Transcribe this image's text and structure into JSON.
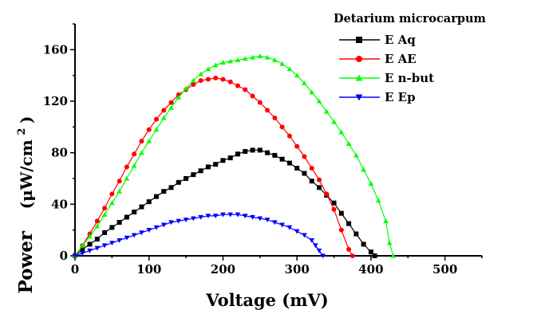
{
  "chart_data": {
    "type": "line",
    "xlabel": "Voltage (mV)",
    "ylabel_main": "Power",
    "ylabel_unit_open": "(μW/cm",
    "ylabel_unit_sup": "2",
    "ylabel_unit_close": ")",
    "xlim": [
      0,
      550
    ],
    "ylim": [
      0,
      180
    ],
    "xticks": [
      0,
      100,
      200,
      300,
      400,
      500
    ],
    "yticks": [
      0,
      40,
      80,
      120,
      160
    ],
    "grid": false,
    "legend": {
      "title": "Detarium microcarpum",
      "placement": "top-right"
    },
    "series": [
      {
        "name": "E Aq",
        "color": "#000000",
        "marker": "square",
        "points": [
          [
            0,
            0
          ],
          [
            10,
            5
          ],
          [
            20,
            9
          ],
          [
            30,
            13
          ],
          [
            40,
            18
          ],
          [
            50,
            22
          ],
          [
            60,
            26
          ],
          [
            70,
            30
          ],
          [
            80,
            34
          ],
          [
            90,
            38
          ],
          [
            100,
            42
          ],
          [
            110,
            46
          ],
          [
            120,
            50
          ],
          [
            130,
            53
          ],
          [
            140,
            57
          ],
          [
            150,
            60
          ],
          [
            160,
            63
          ],
          [
            170,
            66
          ],
          [
            180,
            69
          ],
          [
            190,
            71
          ],
          [
            200,
            74
          ],
          [
            210,
            76
          ],
          [
            220,
            79
          ],
          [
            230,
            81
          ],
          [
            240,
            82
          ],
          [
            250,
            82
          ],
          [
            260,
            80
          ],
          [
            270,
            78
          ],
          [
            280,
            75
          ],
          [
            290,
            72
          ],
          [
            300,
            68
          ],
          [
            310,
            64
          ],
          [
            320,
            58
          ],
          [
            330,
            53
          ],
          [
            340,
            47
          ],
          [
            350,
            41
          ],
          [
            360,
            33
          ],
          [
            370,
            25
          ],
          [
            380,
            17
          ],
          [
            390,
            9
          ],
          [
            400,
            3
          ],
          [
            405,
            0
          ]
        ]
      },
      {
        "name": "E AE",
        "color": "#ff0000",
        "marker": "circle",
        "points": [
          [
            0,
            0
          ],
          [
            10,
            8
          ],
          [
            20,
            17
          ],
          [
            30,
            27
          ],
          [
            40,
            37
          ],
          [
            50,
            48
          ],
          [
            60,
            58
          ],
          [
            70,
            69
          ],
          [
            80,
            79
          ],
          [
            90,
            89
          ],
          [
            100,
            98
          ],
          [
            110,
            106
          ],
          [
            120,
            113
          ],
          [
            130,
            119
          ],
          [
            140,
            125
          ],
          [
            150,
            129
          ],
          [
            160,
            133
          ],
          [
            170,
            136
          ],
          [
            180,
            137
          ],
          [
            190,
            138
          ],
          [
            200,
            137
          ],
          [
            210,
            135
          ],
          [
            220,
            132
          ],
          [
            230,
            129
          ],
          [
            240,
            124
          ],
          [
            250,
            119
          ],
          [
            260,
            113
          ],
          [
            270,
            107
          ],
          [
            280,
            100
          ],
          [
            290,
            93
          ],
          [
            300,
            85
          ],
          [
            310,
            77
          ],
          [
            320,
            68
          ],
          [
            330,
            59
          ],
          [
            340,
            48
          ],
          [
            350,
            36
          ],
          [
            360,
            20
          ],
          [
            370,
            5
          ],
          [
            375,
            0
          ]
        ]
      },
      {
        "name": "E n-but",
        "color": "#00ff00",
        "marker": "triangle-up",
        "points": [
          [
            0,
            0
          ],
          [
            10,
            8
          ],
          [
            20,
            15
          ],
          [
            30,
            23
          ],
          [
            40,
            32
          ],
          [
            50,
            41
          ],
          [
            60,
            50
          ],
          [
            70,
            60
          ],
          [
            80,
            70
          ],
          [
            90,
            80
          ],
          [
            100,
            89
          ],
          [
            110,
            98
          ],
          [
            120,
            107
          ],
          [
            130,
            115
          ],
          [
            140,
            123
          ],
          [
            150,
            130
          ],
          [
            160,
            136
          ],
          [
            170,
            141
          ],
          [
            180,
            145
          ],
          [
            190,
            148
          ],
          [
            200,
            150
          ],
          [
            210,
            151
          ],
          [
            220,
            152
          ],
          [
            230,
            153
          ],
          [
            240,
            154
          ],
          [
            250,
            155
          ],
          [
            260,
            154
          ],
          [
            270,
            152
          ],
          [
            280,
            149
          ],
          [
            290,
            145
          ],
          [
            300,
            140
          ],
          [
            310,
            134
          ],
          [
            320,
            127
          ],
          [
            330,
            120
          ],
          [
            340,
            112
          ],
          [
            350,
            104
          ],
          [
            360,
            96
          ],
          [
            370,
            87
          ],
          [
            380,
            78
          ],
          [
            390,
            67
          ],
          [
            400,
            56
          ],
          [
            410,
            43
          ],
          [
            420,
            27
          ],
          [
            425,
            10
          ],
          [
            430,
            0
          ]
        ]
      },
      {
        "name": "E Ep",
        "color": "#0000ff",
        "marker": "triangle-down",
        "points": [
          [
            0,
            0
          ],
          [
            10,
            2
          ],
          [
            20,
            4
          ],
          [
            30,
            6
          ],
          [
            40,
            8
          ],
          [
            50,
            10
          ],
          [
            60,
            12
          ],
          [
            70,
            14
          ],
          [
            80,
            16
          ],
          [
            90,
            18
          ],
          [
            100,
            20
          ],
          [
            110,
            22
          ],
          [
            120,
            24
          ],
          [
            130,
            26
          ],
          [
            140,
            27
          ],
          [
            150,
            28
          ],
          [
            160,
            29
          ],
          [
            170,
            30
          ],
          [
            180,
            31
          ],
          [
            190,
            31
          ],
          [
            200,
            32
          ],
          [
            210,
            32
          ],
          [
            220,
            32
          ],
          [
            230,
            31
          ],
          [
            240,
            30
          ],
          [
            250,
            29
          ],
          [
            260,
            28
          ],
          [
            270,
            26
          ],
          [
            280,
            24
          ],
          [
            290,
            22
          ],
          [
            300,
            19
          ],
          [
            310,
            16
          ],
          [
            320,
            12
          ],
          [
            325,
            8
          ],
          [
            330,
            4
          ],
          [
            335,
            0
          ]
        ]
      }
    ]
  }
}
